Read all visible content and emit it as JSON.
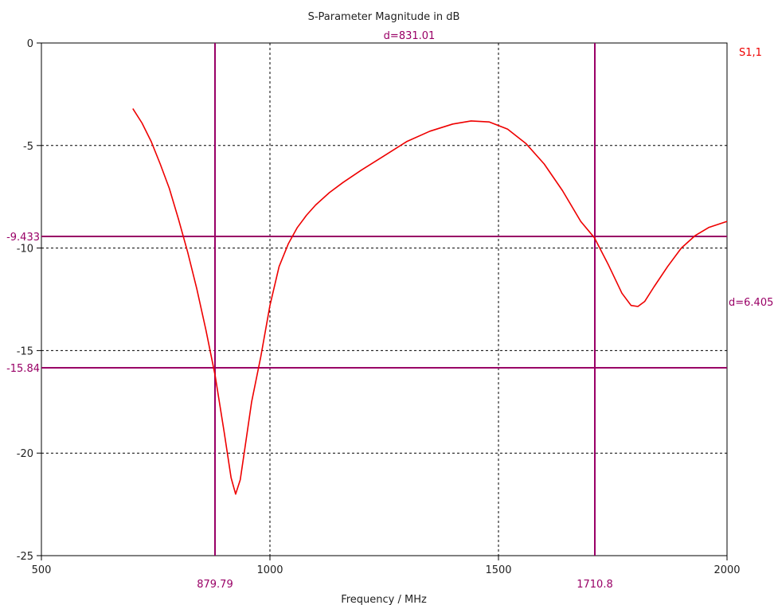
{
  "chart_data": {
    "type": "line",
    "title": "S-Parameter Magnitude in dB",
    "xlabel": "Frequency / MHz",
    "ylabel": "",
    "xlim": [
      500,
      2000
    ],
    "ylim": [
      -25,
      0
    ],
    "xticks": [
      500,
      1000,
      1500,
      2000
    ],
    "yticks": [
      0,
      -5,
      -10,
      -15,
      -20,
      -25
    ],
    "grid": "dashed",
    "colors": {
      "curve": "#ee0000",
      "marker": "#990066",
      "grid": "#000000",
      "axis": "#000000"
    },
    "series": [
      {
        "name": "S1,1",
        "x": [
          700,
          720,
          740,
          760,
          780,
          800,
          820,
          840,
          860,
          880,
          900,
          915,
          925,
          935,
          945,
          960,
          980,
          1000,
          1020,
          1040,
          1060,
          1080,
          1100,
          1130,
          1160,
          1200,
          1250,
          1300,
          1350,
          1400,
          1440,
          1480,
          1520,
          1560,
          1600,
          1640,
          1680,
          1710,
          1740,
          1770,
          1790,
          1805,
          1820,
          1840,
          1870,
          1900,
          1930,
          1960,
          2000
        ],
        "y": [
          -3.2,
          -3.9,
          -4.8,
          -5.9,
          -7.1,
          -8.6,
          -10.2,
          -12.0,
          -14.0,
          -16.2,
          -19.0,
          -21.2,
          -22.0,
          -21.3,
          -19.8,
          -17.5,
          -15.3,
          -12.8,
          -10.9,
          -9.8,
          -9.0,
          -8.4,
          -7.9,
          -7.3,
          -6.8,
          -6.2,
          -5.5,
          -4.8,
          -4.3,
          -3.95,
          -3.8,
          -3.85,
          -4.2,
          -4.9,
          -5.9,
          -7.2,
          -8.7,
          -9.5,
          -10.8,
          -12.2,
          -12.8,
          -12.85,
          -12.6,
          -11.9,
          -10.9,
          -10.0,
          -9.4,
          -9.0,
          -8.7
        ]
      }
    ],
    "legend": {
      "label": "S1,1",
      "position": "top-right"
    },
    "markers": {
      "vertical": [
        {
          "x": 879.79,
          "label": "879.79"
        },
        {
          "x": 1710.8,
          "label": "1710.8"
        }
      ],
      "horizontal": [
        {
          "y": -9.433,
          "label": "-9.433"
        },
        {
          "y": -15.84,
          "label": "-15.84"
        }
      ],
      "delta_x_label": "d=831.01",
      "delta_y_label": "d=6.405"
    }
  }
}
